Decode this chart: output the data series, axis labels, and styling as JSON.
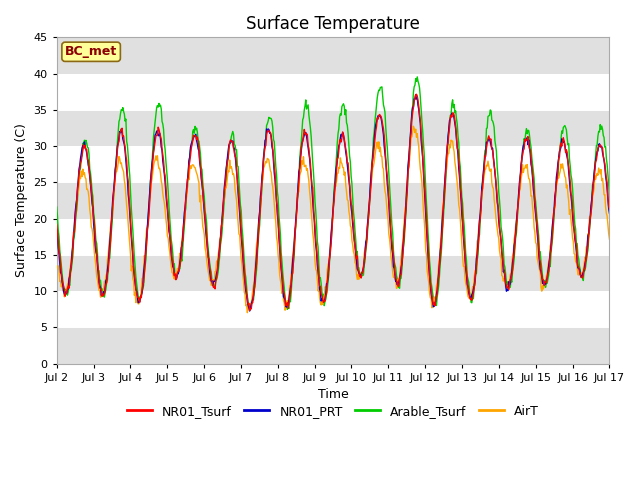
{
  "title": "Surface Temperature",
  "ylabel": "Surface Temperature (C)",
  "xlabel": "Time",
  "ylim": [
    0,
    45
  ],
  "yticks": [
    0,
    5,
    10,
    15,
    20,
    25,
    30,
    35,
    40,
    45
  ],
  "annotation_text": "BC_met",
  "annotation_color": "#8B0000",
  "annotation_bg": "#FFFF99",
  "annotation_edge": "#8B6914",
  "line_colors": {
    "NR01_Tsurf": "#FF0000",
    "NR01_PRT": "#0000CC",
    "Arable_Tsurf": "#00CC00",
    "AirT": "#FFA500"
  },
  "bg_band_color": "#E0E0E0",
  "fig_bg": "#FFFFFF",
  "xticklabels": [
    "Jul 2",
    "Jul 3",
    "Jul 4",
    "Jul 5",
    "Jul 6",
    "Jul 7",
    "Jul 8",
    "Jul 9",
    "Jul 10",
    "Jul 11",
    "Jul 12",
    "Jul 13",
    "Jul 14",
    "Jul 15",
    "Jul 16",
    "Jul 17"
  ],
  "start_day": 2,
  "end_day": 17,
  "n_points": 720,
  "daily_min_vals": [
    9.5,
    10.0,
    7.5,
    12.0,
    12.0,
    7.5,
    8.0,
    7.5,
    12.0,
    12.0,
    8.0,
    8.5,
    10.5,
    10.5,
    12.0,
    12.0
  ],
  "daily_max_tsurf": [
    29.0,
    30.5,
    32.5,
    32.0,
    31.5,
    30.5,
    33.0,
    31.5,
    31.5,
    35.5,
    37.5,
    33.5,
    30.0,
    31.5,
    30.5,
    30.0
  ],
  "daily_max_arable": [
    31.0,
    30.5,
    36.5,
    35.5,
    31.5,
    31.5,
    35.0,
    36.0,
    35.5,
    39.0,
    39.5,
    34.5,
    34.5,
    31.5,
    33.0,
    32.5
  ]
}
